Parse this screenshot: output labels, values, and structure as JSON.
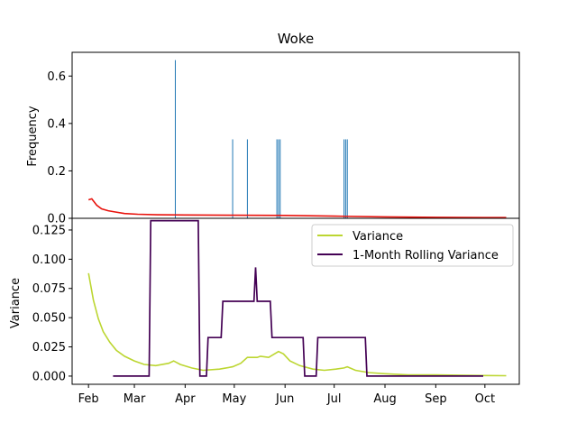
{
  "chart_data": [
    {
      "type": "bar+line",
      "title": "Woke",
      "xlabel": "",
      "ylabel": "Frequency",
      "ylim": [
        0,
        0.7
      ],
      "yticks": [
        0.0,
        0.2,
        0.4,
        0.6
      ],
      "ytick_labels": [
        "0.0",
        "0.2",
        "0.4",
        "0.6"
      ],
      "grid": false,
      "bars": {
        "color": "#1f77b4",
        "points": [
          {
            "x": "2023-03-26",
            "y": 0.667
          },
          {
            "x": "2023-04-30",
            "y": 0.333
          },
          {
            "x": "2023-05-09",
            "y": 0.333
          },
          {
            "x": "2023-05-27",
            "y": 0.333
          },
          {
            "x": "2023-05-28",
            "y": 0.333
          },
          {
            "x": "2023-05-29",
            "y": 0.333
          },
          {
            "x": "2023-07-07",
            "y": 0.333
          },
          {
            "x": "2023-07-08",
            "y": 0.333
          },
          {
            "x": "2023-07-09",
            "y": 0.333
          }
        ]
      },
      "line": {
        "color": "#e8120c",
        "points": [
          {
            "x": "2023-02-01",
            "y": 0.078
          },
          {
            "x": "2023-02-03",
            "y": 0.082
          },
          {
            "x": "2023-02-06",
            "y": 0.055
          },
          {
            "x": "2023-02-09",
            "y": 0.04
          },
          {
            "x": "2023-02-13",
            "y": 0.032
          },
          {
            "x": "2023-02-17",
            "y": 0.027
          },
          {
            "x": "2023-02-23",
            "y": 0.02
          },
          {
            "x": "2023-03-03",
            "y": 0.017
          },
          {
            "x": "2023-03-15",
            "y": 0.015
          },
          {
            "x": "2023-04-01",
            "y": 0.014
          },
          {
            "x": "2023-05-01",
            "y": 0.013
          },
          {
            "x": "2023-06-01",
            "y": 0.012
          },
          {
            "x": "2023-07-01",
            "y": 0.009
          },
          {
            "x": "2023-08-01",
            "y": 0.006
          },
          {
            "x": "2023-09-01",
            "y": 0.004
          },
          {
            "x": "2023-10-01",
            "y": 0.003
          },
          {
            "x": "2023-10-14",
            "y": 0.003
          }
        ]
      }
    },
    {
      "type": "line",
      "xlabel": "",
      "ylabel": "Variance",
      "ylim": [
        -0.007,
        0.135
      ],
      "yticks": [
        0.0,
        0.025,
        0.05,
        0.075,
        0.1,
        0.125
      ],
      "ytick_labels": [
        "0.000",
        "0.025",
        "0.050",
        "0.075",
        "0.100",
        "0.125"
      ],
      "xlim": [
        "2023-01-22",
        "2023-10-22"
      ],
      "xticks": [
        "2023-02-01",
        "2023-03-01",
        "2023-04-01",
        "2023-05-01",
        "2023-06-01",
        "2023-07-01",
        "2023-08-01",
        "2023-09-01",
        "2023-10-01"
      ],
      "xtick_labels": [
        "Feb",
        "Mar",
        "Apr",
        "May",
        "Jun",
        "Jul",
        "Aug",
        "Sep",
        "Oct"
      ],
      "grid": false,
      "legend_position": "top-right",
      "series": [
        {
          "name": "Variance",
          "color": "#bcd631",
          "points": [
            {
              "x": "2023-02-01",
              "y": 0.088
            },
            {
              "x": "2023-02-04",
              "y": 0.065
            },
            {
              "x": "2023-02-07",
              "y": 0.049
            },
            {
              "x": "2023-02-10",
              "y": 0.038
            },
            {
              "x": "2023-02-14",
              "y": 0.029
            },
            {
              "x": "2023-02-18",
              "y": 0.022
            },
            {
              "x": "2023-02-23",
              "y": 0.017
            },
            {
              "x": "2023-03-01",
              "y": 0.013
            },
            {
              "x": "2023-03-07",
              "y": 0.01
            },
            {
              "x": "2023-03-14",
              "y": 0.009
            },
            {
              "x": "2023-03-22",
              "y": 0.011
            },
            {
              "x": "2023-03-25",
              "y": 0.013
            },
            {
              "x": "2023-03-29",
              "y": 0.01
            },
            {
              "x": "2023-04-05",
              "y": 0.007
            },
            {
              "x": "2023-04-12",
              "y": 0.005
            },
            {
              "x": "2023-04-22",
              "y": 0.006
            },
            {
              "x": "2023-04-30",
              "y": 0.008
            },
            {
              "x": "2023-05-05",
              "y": 0.011
            },
            {
              "x": "2023-05-09",
              "y": 0.016
            },
            {
              "x": "2023-05-15",
              "y": 0.016
            },
            {
              "x": "2023-05-17",
              "y": 0.017
            },
            {
              "x": "2023-05-22",
              "y": 0.016
            },
            {
              "x": "2023-05-28",
              "y": 0.021
            },
            {
              "x": "2023-05-31",
              "y": 0.019
            },
            {
              "x": "2023-06-04",
              "y": 0.013
            },
            {
              "x": "2023-06-10",
              "y": 0.009
            },
            {
              "x": "2023-06-18",
              "y": 0.006
            },
            {
              "x": "2023-06-25",
              "y": 0.005
            },
            {
              "x": "2023-07-02",
              "y": 0.006
            },
            {
              "x": "2023-07-07",
              "y": 0.007
            },
            {
              "x": "2023-07-09",
              "y": 0.008
            },
            {
              "x": "2023-07-14",
              "y": 0.005
            },
            {
              "x": "2023-07-22",
              "y": 0.003
            },
            {
              "x": "2023-08-01",
              "y": 0.002
            },
            {
              "x": "2023-08-15",
              "y": 0.001
            },
            {
              "x": "2023-09-01",
              "y": 0.001
            },
            {
              "x": "2023-10-01",
              "y": 0.0005
            },
            {
              "x": "2023-10-14",
              "y": 0.0003
            }
          ]
        },
        {
          "name": "1-Month Rolling Variance",
          "color": "#440154",
          "points": [
            {
              "x": "2023-02-16",
              "y": 0.0
            },
            {
              "x": "2023-03-10",
              "y": 0.0
            },
            {
              "x": "2023-03-11",
              "y": 0.133
            },
            {
              "x": "2023-04-09",
              "y": 0.133
            },
            {
              "x": "2023-04-10",
              "y": 0.0
            },
            {
              "x": "2023-04-14",
              "y": 0.0
            },
            {
              "x": "2023-04-15",
              "y": 0.033
            },
            {
              "x": "2023-04-23",
              "y": 0.033
            },
            {
              "x": "2023-04-24",
              "y": 0.064
            },
            {
              "x": "2023-05-13",
              "y": 0.064
            },
            {
              "x": "2023-05-14",
              "y": 0.093
            },
            {
              "x": "2023-05-15",
              "y": 0.064
            },
            {
              "x": "2023-05-23",
              "y": 0.064
            },
            {
              "x": "2023-05-24",
              "y": 0.033
            },
            {
              "x": "2023-06-12",
              "y": 0.033
            },
            {
              "x": "2023-06-13",
              "y": 0.0
            },
            {
              "x": "2023-06-20",
              "y": 0.0
            },
            {
              "x": "2023-06-21",
              "y": 0.033
            },
            {
              "x": "2023-07-20",
              "y": 0.033
            },
            {
              "x": "2023-07-21",
              "y": 0.0
            },
            {
              "x": "2023-09-30",
              "y": 0.0
            }
          ]
        }
      ]
    }
  ]
}
